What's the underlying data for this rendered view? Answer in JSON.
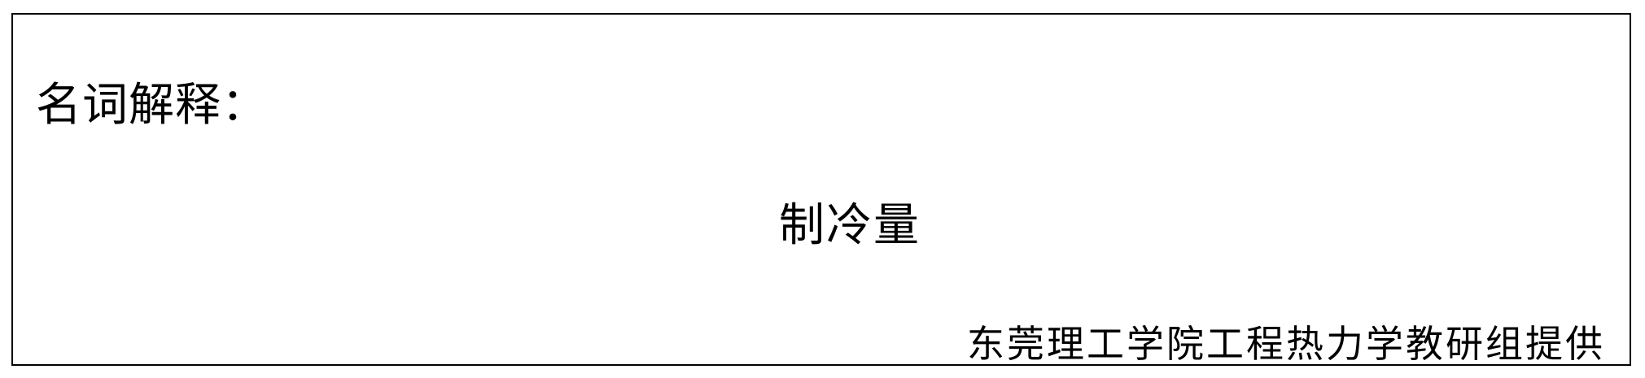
{
  "document": {
    "heading": "名词解释：",
    "term": "制冷量",
    "credit": "东莞理工学院工程热力学教研组提供"
  }
}
